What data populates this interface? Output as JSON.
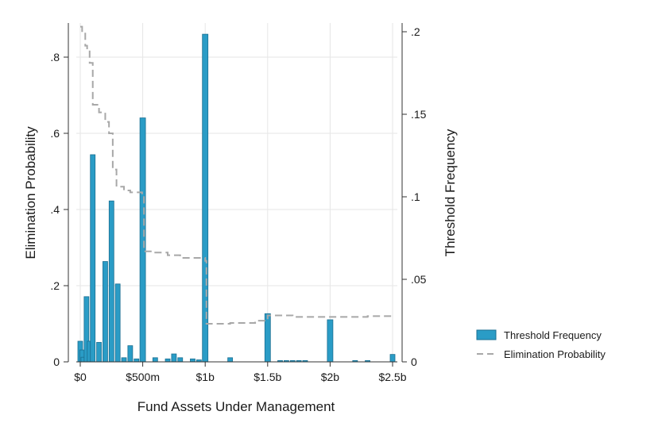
{
  "chart_data": {
    "type": "bar",
    "xlabel": "Fund Assets Under Management",
    "ylabel_left": "Elimination Probability",
    "ylabel_right": "Threshold Frequency",
    "x_range_millions": [
      0,
      2500
    ],
    "ylim_left": [
      0,
      0.9
    ],
    "ylim_right": [
      0,
      0.2
    ],
    "grid": true,
    "legend_position": "right",
    "x_ticks": [
      {
        "value": 0,
        "label": "$0"
      },
      {
        "value": 500,
        "label": "$500m"
      },
      {
        "value": 1000,
        "label": "$1b"
      },
      {
        "value": 1500,
        "label": "$1.5b"
      },
      {
        "value": 2000,
        "label": "$2b"
      },
      {
        "value": 2500,
        "label": "$2.5b"
      }
    ],
    "y_left_ticks": [
      {
        "value": 0,
        "label": "0"
      },
      {
        "value": 0.2,
        "label": ".2"
      },
      {
        "value": 0.4,
        "label": ".4"
      },
      {
        "value": 0.6,
        "label": ".6"
      },
      {
        "value": 0.8,
        "label": ".8"
      }
    ],
    "y_right_ticks": [
      {
        "value": 0,
        "label": "0"
      },
      {
        "value": 0.05,
        "label": ".05"
      },
      {
        "value": 0.1,
        "label": ".1"
      },
      {
        "value": 0.15,
        "label": ".15"
      },
      {
        "value": 0.2,
        "label": ".2"
      }
    ],
    "series": [
      {
        "name": "Threshold Frequency",
        "type": "bar",
        "axis": "right",
        "color": "#2a9cc6",
        "points": [
          {
            "x": 0,
            "y": 0.0125
          },
          {
            "x": 15,
            "y": 0.0072
          },
          {
            "x": 25,
            "y": 0.0028
          },
          {
            "x": 50,
            "y": 0.0395
          },
          {
            "x": 75,
            "y": 0.0125
          },
          {
            "x": 100,
            "y": 0.1255
          },
          {
            "x": 150,
            "y": 0.0118
          },
          {
            "x": 200,
            "y": 0.0608
          },
          {
            "x": 250,
            "y": 0.0975
          },
          {
            "x": 300,
            "y": 0.0472
          },
          {
            "x": 350,
            "y": 0.0025
          },
          {
            "x": 400,
            "y": 0.0098
          },
          {
            "x": 450,
            "y": 0.0018
          },
          {
            "x": 500,
            "y": 0.1478
          },
          {
            "x": 600,
            "y": 0.0025
          },
          {
            "x": 700,
            "y": 0.0018
          },
          {
            "x": 750,
            "y": 0.0048
          },
          {
            "x": 800,
            "y": 0.0025
          },
          {
            "x": 900,
            "y": 0.0018
          },
          {
            "x": 950,
            "y": 0.0012
          },
          {
            "x": 1000,
            "y": 0.1985
          },
          {
            "x": 1200,
            "y": 0.0025
          },
          {
            "x": 1500,
            "y": 0.0292
          },
          {
            "x": 1600,
            "y": 0.0008
          },
          {
            "x": 1650,
            "y": 0.0008
          },
          {
            "x": 1700,
            "y": 0.0008
          },
          {
            "x": 1750,
            "y": 0.0008
          },
          {
            "x": 1800,
            "y": 0.0008
          },
          {
            "x": 2000,
            "y": 0.0255
          },
          {
            "x": 2200,
            "y": 0.0008
          },
          {
            "x": 2300,
            "y": 0.0008
          },
          {
            "x": 2500,
            "y": 0.0045
          }
        ]
      },
      {
        "name": "Elimination Probability",
        "type": "line",
        "style": "dashed",
        "axis": "left",
        "color": "#a8a8a8",
        "points": [
          {
            "x": 0,
            "y": 0.88
          },
          {
            "x": 15,
            "y": 0.865
          },
          {
            "x": 40,
            "y": 0.83
          },
          {
            "x": 55,
            "y": 0.815
          },
          {
            "x": 75,
            "y": 0.785
          },
          {
            "x": 100,
            "y": 0.675
          },
          {
            "x": 150,
            "y": 0.655
          },
          {
            "x": 200,
            "y": 0.63
          },
          {
            "x": 230,
            "y": 0.6
          },
          {
            "x": 260,
            "y": 0.505
          },
          {
            "x": 290,
            "y": 0.46
          },
          {
            "x": 350,
            "y": 0.45
          },
          {
            "x": 400,
            "y": 0.445
          },
          {
            "x": 495,
            "y": 0.44
          },
          {
            "x": 510,
            "y": 0.29
          },
          {
            "x": 600,
            "y": 0.287
          },
          {
            "x": 700,
            "y": 0.28
          },
          {
            "x": 800,
            "y": 0.273
          },
          {
            "x": 1000,
            "y": 0.265
          },
          {
            "x": 1010,
            "y": 0.1
          },
          {
            "x": 1200,
            "y": 0.102
          },
          {
            "x": 1400,
            "y": 0.108
          },
          {
            "x": 1500,
            "y": 0.122
          },
          {
            "x": 1700,
            "y": 0.118
          },
          {
            "x": 2000,
            "y": 0.118
          },
          {
            "x": 2300,
            "y": 0.12
          },
          {
            "x": 2500,
            "y": 0.12
          }
        ]
      }
    ]
  }
}
